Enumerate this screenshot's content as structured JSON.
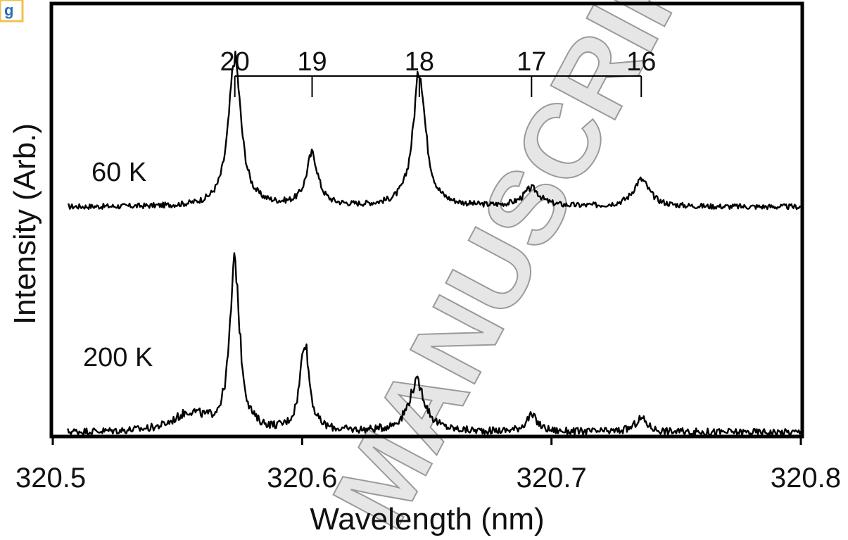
{
  "corner_tag": "g",
  "watermark": "MANUSCRIPT",
  "chart_data": {
    "type": "line",
    "xlabel": "Wavelength (nm)",
    "ylabel": "Intensity (Arb.)",
    "xlim": [
      320.5,
      320.8
    ],
    "x_ticks": [
      320.5,
      320.6,
      320.7,
      320.8
    ],
    "x_tick_labels": [
      "320.5",
      "320.6",
      "320.7",
      "320.8"
    ],
    "y_ticks": [],
    "grid": false,
    "line_markers": {
      "positions": [
        320.573,
        320.604,
        320.647,
        320.692,
        320.736
      ],
      "labels": [
        "20",
        "19",
        "18",
        "17",
        "16"
      ]
    },
    "series": [
      {
        "name": "60 K",
        "baseline": 0.5,
        "noise": 0.006,
        "peaks": [
          {
            "center": 320.573,
            "height": 0.33,
            "width": 0.003
          },
          {
            "center": 320.604,
            "height": 0.115,
            "width": 0.0028
          },
          {
            "center": 320.647,
            "height": 0.3,
            "width": 0.003
          },
          {
            "center": 320.692,
            "height": 0.04,
            "width": 0.004
          },
          {
            "center": 320.736,
            "height": 0.06,
            "width": 0.004
          }
        ]
      },
      {
        "name": "200 K",
        "baseline": 0.0,
        "noise": 0.008,
        "peaks": [
          {
            "center": 320.573,
            "height": 0.37,
            "width": 0.0024
          },
          {
            "center": 320.601,
            "height": 0.2,
            "width": 0.0022
          },
          {
            "center": 320.646,
            "height": 0.11,
            "width": 0.004
          },
          {
            "center": 320.692,
            "height": 0.035,
            "width": 0.003
          },
          {
            "center": 320.736,
            "height": 0.03,
            "width": 0.003
          },
          {
            "center": 320.555,
            "height": 0.04,
            "width": 0.008
          }
        ]
      }
    ],
    "ylim": [
      0,
      1
    ]
  }
}
